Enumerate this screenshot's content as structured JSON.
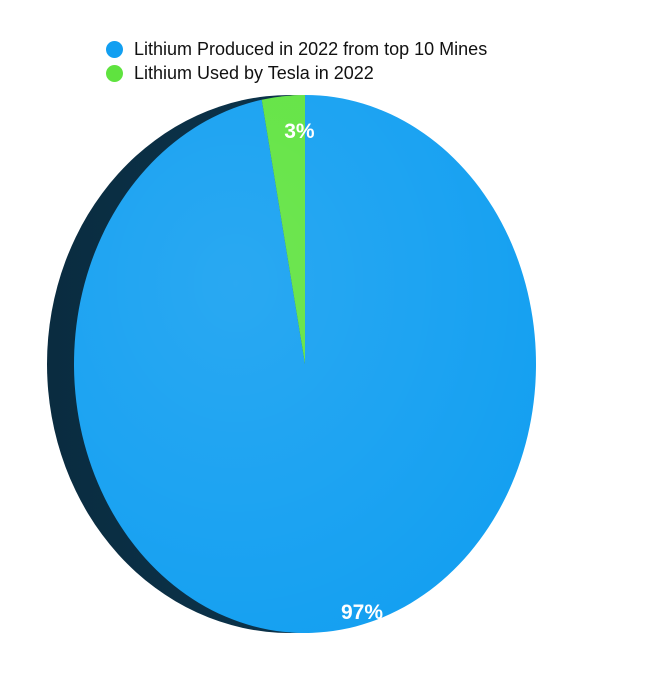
{
  "chart_data": {
    "type": "pie",
    "title": "",
    "legend_position": "top",
    "series": [
      {
        "name": "Lithium Produced in 2022 from top 10 Mines",
        "value": 97,
        "label": "97%",
        "color": "#129ff1"
      },
      {
        "name": "Lithium Used by Tesla in 2022",
        "value": 3,
        "label": "3%",
        "color": "#5fe33f"
      }
    ]
  }
}
